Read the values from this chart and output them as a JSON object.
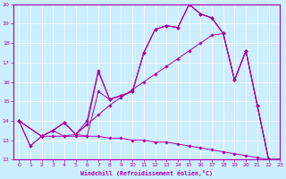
{
  "xlabel": "Windchill (Refroidissement éolien,°C)",
  "xlim": [
    -0.5,
    23
  ],
  "ylim": [
    12,
    20
  ],
  "yticks": [
    12,
    13,
    14,
    15,
    16,
    17,
    18,
    19,
    20
  ],
  "xticks": [
    0,
    1,
    2,
    3,
    4,
    5,
    6,
    7,
    8,
    9,
    10,
    11,
    12,
    13,
    14,
    15,
    16,
    17,
    18,
    19,
    20,
    21,
    22,
    23
  ],
  "bg_color": "#cceeff",
  "line_color": "#aa00aa",
  "grid_color": "#ffffff",
  "lx1": [
    0,
    1,
    2,
    3,
    4,
    5,
    6,
    7,
    8,
    9,
    10,
    11,
    12,
    13,
    14,
    15,
    16,
    17,
    18,
    19,
    20,
    21,
    22,
    23
  ],
  "ly1": [
    14.0,
    12.7,
    13.2,
    13.5,
    13.9,
    13.3,
    13.8,
    16.5,
    15.1,
    15.3,
    15.5,
    17.5,
    18.7,
    18.9,
    18.8,
    20.0,
    19.5,
    19.3,
    18.5,
    16.1,
    17.6,
    14.8,
    12.0,
    12.0
  ],
  "lx2": [
    0,
    2,
    3,
    4,
    5,
    6,
    7,
    8,
    9,
    10,
    11,
    12,
    13,
    14,
    15,
    16,
    17,
    18,
    19,
    20,
    21,
    22,
    23
  ],
  "ly2": [
    14.0,
    13.2,
    13.5,
    13.2,
    13.3,
    14.0,
    16.6,
    15.1,
    15.3,
    15.5,
    17.5,
    18.7,
    18.9,
    18.8,
    20.0,
    19.5,
    19.3,
    18.5,
    16.1,
    17.6,
    14.8,
    12.0,
    12.0
  ],
  "lx3": [
    0,
    2,
    3,
    4,
    5,
    6,
    7,
    8,
    9,
    10,
    11,
    12,
    13,
    14,
    15,
    16,
    17,
    18,
    19,
    20,
    21,
    22,
    23
  ],
  "ly3": [
    14.0,
    13.2,
    13.5,
    13.9,
    13.3,
    13.2,
    15.5,
    15.1,
    15.3,
    15.5,
    17.5,
    18.7,
    18.9,
    18.8,
    20.0,
    19.5,
    19.3,
    18.5,
    16.1,
    17.6,
    14.8,
    12.0,
    12.0
  ],
  "lx4": [
    0,
    2,
    3,
    4,
    5,
    6,
    7,
    8,
    9,
    10,
    11,
    12,
    13,
    14,
    15,
    16,
    17,
    18,
    19,
    20,
    21,
    22,
    23
  ],
  "ly4": [
    14.0,
    13.2,
    13.5,
    13.9,
    13.3,
    13.8,
    14.3,
    14.8,
    15.2,
    15.6,
    16.0,
    16.4,
    16.8,
    17.2,
    17.6,
    18.0,
    18.4,
    18.5,
    16.1,
    17.6,
    14.8,
    12.0,
    12.0
  ],
  "lx5": [
    0,
    1,
    2,
    3,
    4,
    5,
    6,
    7,
    8,
    9,
    10,
    11,
    12,
    13,
    14,
    15,
    16,
    17,
    18,
    19,
    20,
    21,
    22,
    23
  ],
  "ly5": [
    14.0,
    12.7,
    13.2,
    13.2,
    13.2,
    13.2,
    13.2,
    13.2,
    13.1,
    13.1,
    13.0,
    13.0,
    12.9,
    12.9,
    12.8,
    12.7,
    12.6,
    12.5,
    12.4,
    12.3,
    12.2,
    12.1,
    12.0,
    12.0
  ]
}
